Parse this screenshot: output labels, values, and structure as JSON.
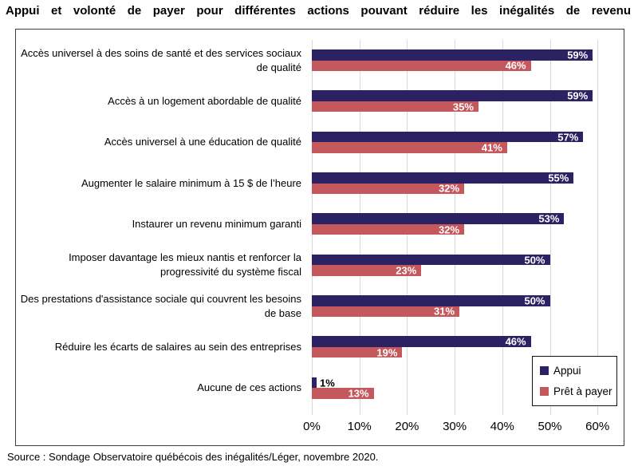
{
  "title": "Appui et volonté de payer pour différentes actions pouvant réduire les inégalités de revenu",
  "source": "Source : Sondage Observatoire québécois des inégalités/Léger, novembre 2020.",
  "legend": {
    "items": [
      {
        "label": "Appui",
        "color": "#2b2264"
      },
      {
        "label": "Prêt à payer",
        "color": "#c4585c"
      }
    ]
  },
  "colors": {
    "appui": "#2b2264",
    "pret_a_payer": "#c4585c",
    "gridline": "#d8d8d8",
    "plot_border": "#3d3d3d",
    "value_label_inside": "#ffffff",
    "value_label_outside": "#000000"
  },
  "chart_data": {
    "type": "bar",
    "orientation": "horizontal",
    "title": "Appui et volonté de payer pour différentes actions pouvant réduire les inégalités de revenu",
    "categories": [
      "Accès universel à des soins de santé et des services sociaux de qualité",
      "Accès à un logement abordable de qualité",
      "Accès universel à une éducation de qualité",
      "Augmenter le salaire minimum à 15 $ de l’heure",
      "Instaurer un revenu minimum garanti",
      "Imposer davantage les mieux nantis et renforcer la progressivité du système fiscal",
      "Des prestations d'assistance sociale qui couvrent les besoins de base",
      "Réduire les écarts de salaires au sein des entreprises",
      "Aucune de ces actions"
    ],
    "series": [
      {
        "name": "Appui",
        "color": "#2b2264",
        "values": [
          59,
          59,
          57,
          55,
          53,
          50,
          50,
          46,
          1
        ]
      },
      {
        "name": "Prêt à payer",
        "color": "#c4585c",
        "values": [
          46,
          35,
          41,
          32,
          32,
          23,
          31,
          19,
          13
        ]
      }
    ],
    "value_suffix": "%",
    "x_ticks": [
      "0%",
      "10%",
      "20%",
      "30%",
      "40%",
      "50%",
      "60%"
    ],
    "x_tick_values": [
      0,
      10,
      20,
      30,
      40,
      50,
      60
    ],
    "xlim": [
      0,
      65.5
    ],
    "grid": true,
    "legend_position": "bottom-right",
    "value_labels": "inside-end"
  }
}
